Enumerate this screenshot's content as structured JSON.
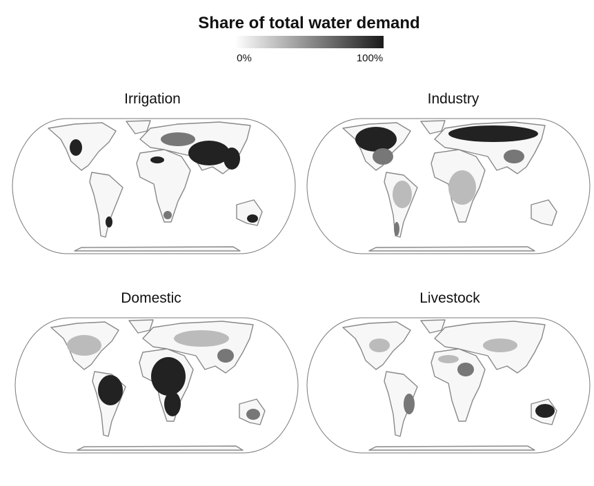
{
  "title": "Share of total water demand",
  "legend": {
    "min_label": "0%",
    "max_label": "100%"
  },
  "maps": [
    {
      "title": "Irrigation"
    },
    {
      "title": "Industry"
    },
    {
      "title": "Domestic"
    },
    {
      "title": "Livestock"
    }
  ]
}
